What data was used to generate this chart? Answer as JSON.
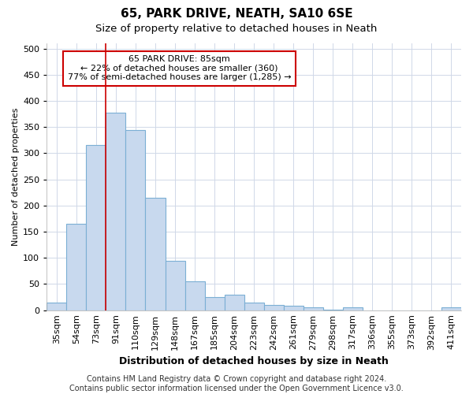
{
  "title": "65, PARK DRIVE, NEATH, SA10 6SE",
  "subtitle": "Size of property relative to detached houses in Neath",
  "xlabel": "Distribution of detached houses by size in Neath",
  "ylabel": "Number of detached properties",
  "categories": [
    "35sqm",
    "54sqm",
    "73sqm",
    "91sqm",
    "110sqm",
    "129sqm",
    "148sqm",
    "167sqm",
    "185sqm",
    "204sqm",
    "223sqm",
    "242sqm",
    "261sqm",
    "279sqm",
    "298sqm",
    "317sqm",
    "336sqm",
    "355sqm",
    "373sqm",
    "392sqm",
    "411sqm"
  ],
  "values": [
    15,
    165,
    315,
    377,
    345,
    215,
    95,
    55,
    25,
    30,
    15,
    10,
    8,
    5,
    1,
    5,
    0,
    0,
    0,
    0,
    5
  ],
  "bar_color": "#c8d9ee",
  "bar_edge_color": "#7bafd4",
  "ylim": [
    0,
    510
  ],
  "yticks": [
    0,
    50,
    100,
    150,
    200,
    250,
    300,
    350,
    400,
    450,
    500
  ],
  "vline_x": 3,
  "vline_color": "#cc0000",
  "annotation_text": "65 PARK DRIVE: 85sqm\n← 22% of detached houses are smaller (360)\n77% of semi-detached houses are larger (1,285) →",
  "annotation_box_color": "#ffffff",
  "annotation_box_edge": "#cc0000",
  "footnote": "Contains HM Land Registry data © Crown copyright and database right 2024.\nContains public sector information licensed under the Open Government Licence v3.0.",
  "bg_color": "#ffffff",
  "fig_bg_color": "#ffffff",
  "grid_color": "#d0d8e8",
  "title_fontsize": 11,
  "subtitle_fontsize": 9.5,
  "xlabel_fontsize": 9,
  "ylabel_fontsize": 8,
  "tick_fontsize": 8,
  "annotation_fontsize": 8,
  "footnote_fontsize": 7
}
